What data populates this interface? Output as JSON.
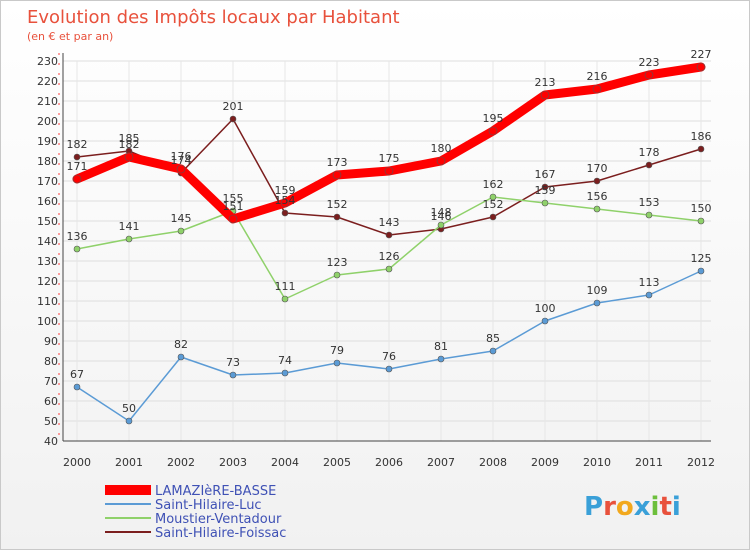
{
  "header": {
    "title": "Evolution des Impôts locaux par Habitant",
    "subtitle": "(en € et par an)"
  },
  "brand": {
    "letters": [
      "P",
      "r",
      "o",
      "x",
      "i",
      "t",
      "i"
    ],
    "colors": [
      "#3aa0d8",
      "#e8513c",
      "#f2a81d",
      "#3aa0d8",
      "#6dbf3c",
      "#e8513c",
      "#3aa0d8"
    ]
  },
  "chart_data": {
    "type": "line",
    "title": "Evolution des Impôts locaux par Habitant",
    "subtitle": "(en € et par an)",
    "xlabel": "",
    "ylabel": "",
    "x": [
      "2000",
      "2001",
      "2002",
      "2003",
      "2004",
      "2005",
      "2006",
      "2007",
      "2008",
      "2009",
      "2010",
      "2011",
      "2012"
    ],
    "ylim": [
      40,
      230
    ],
    "yticks": [
      40,
      50,
      60,
      70,
      80,
      90,
      100,
      110,
      120,
      130,
      140,
      150,
      160,
      170,
      180,
      190,
      200,
      210,
      220,
      230
    ],
    "grid": true,
    "legend": "bottom-left",
    "series": [
      {
        "name": "Saint-Hilaire-Foissac",
        "color": "#7b1e1e",
        "values": [
          182,
          185,
          174,
          201,
          154,
          152,
          143,
          146,
          152,
          167,
          170,
          178,
          186
        ]
      },
      {
        "name": "Moustier-Ventadour",
        "color": "#8fd16a",
        "values": [
          136,
          141,
          145,
          155,
          111,
          123,
          126,
          148,
          162,
          159,
          156,
          153,
          150
        ]
      },
      {
        "name": "Saint-Hilaire-Luc",
        "color": "#5b9bd5",
        "values": [
          67,
          50,
          82,
          73,
          74,
          79,
          76,
          81,
          85,
          100,
          109,
          113,
          125
        ]
      },
      {
        "name": "LAMAZIèRE-BASSE",
        "color": "#ff0000",
        "values": [
          171,
          182,
          176,
          151,
          159,
          173,
          175,
          180,
          195,
          213,
          216,
          223,
          227
        ]
      }
    ],
    "legend_order": [
      "LAMAZIèRE-BASSE",
      "Saint-Hilaire-Luc",
      "Moustier-Ventadour",
      "Saint-Hilaire-Foissac"
    ]
  }
}
